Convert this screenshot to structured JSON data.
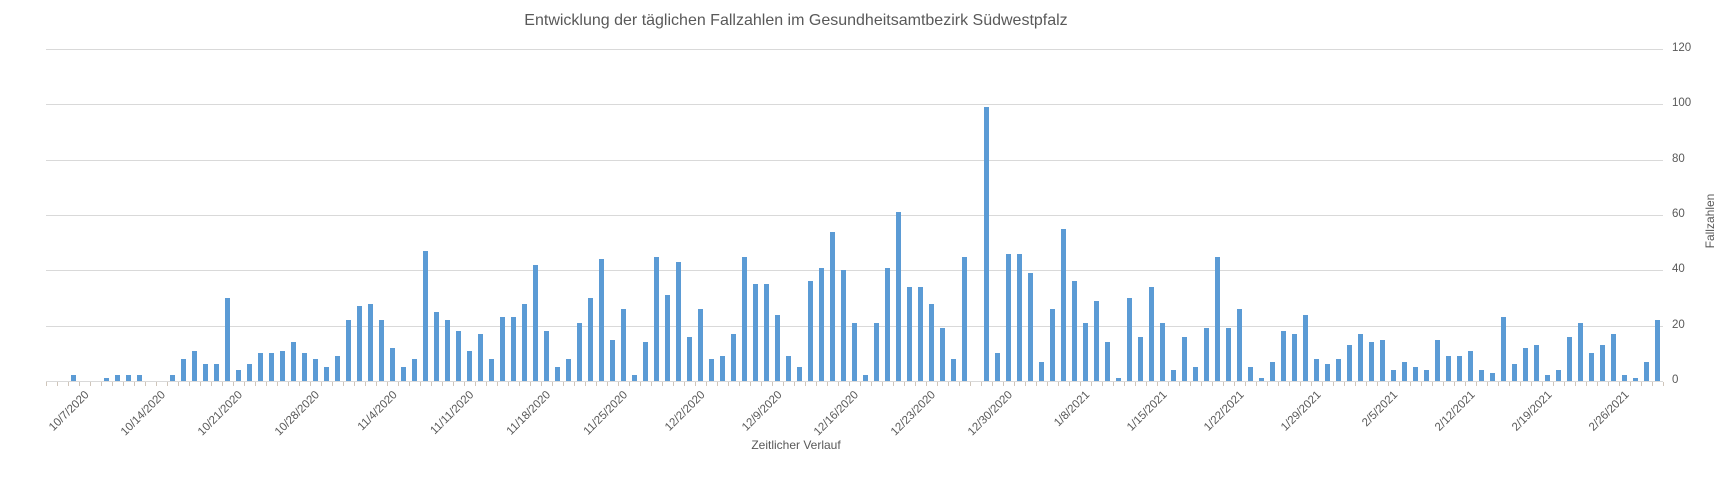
{
  "chart_data": {
    "type": "bar",
    "title": "Entwicklung der täglichen Fallzahlen im Gesundheitsamtbezirk Südwestpfalz",
    "xlabel": "Zeitlicher Verlauf",
    "ylabel": "Fallzahlen",
    "ylim": [
      0,
      120
    ],
    "yticks": [
      0,
      20,
      40,
      60,
      80,
      100,
      120
    ],
    "grid": true,
    "legend_position": "none",
    "y_axis_side": "right",
    "x_tick_labels": [
      "10/7/2020",
      "10/14/2020",
      "10/21/2020",
      "10/28/2020",
      "11/4/2020",
      "11/11/2020",
      "11/18/2020",
      "11/25/2020",
      "12/2/2020",
      "12/9/2020",
      "12/16/2020",
      "12/23/2020",
      "12/30/2020",
      "1/8/2021",
      "1/15/2021",
      "1/22/2021",
      "1/29/2021",
      "2/5/2021",
      "2/12/2021",
      "2/19/2021",
      "2/26/2021"
    ],
    "x_tick_first_slot": 3,
    "x_tick_interval": 7,
    "values": [
      0,
      0,
      2,
      0,
      0,
      1,
      2,
      2,
      2,
      0,
      0,
      2,
      8,
      11,
      6,
      6,
      30,
      4,
      6,
      10,
      10,
      11,
      14,
      10,
      8,
      5,
      9,
      22,
      27,
      28,
      22,
      12,
      5,
      8,
      47,
      25,
      22,
      18,
      11,
      17,
      8,
      23,
      23,
      28,
      42,
      18,
      5,
      8,
      21,
      30,
      44,
      15,
      26,
      2,
      14,
      45,
      31,
      43,
      16,
      26,
      8,
      9,
      17,
      45,
      35,
      35,
      24,
      9,
      5,
      36,
      41,
      54,
      40,
      21,
      2,
      21,
      41,
      61,
      34,
      34,
      28,
      19,
      8,
      45,
      0,
      99,
      10,
      46,
      46,
      39,
      7,
      26,
      55,
      36,
      21,
      29,
      14,
      1,
      30,
      16,
      34,
      21,
      4,
      16,
      5,
      19,
      45,
      19,
      26,
      5,
      1,
      7,
      18,
      17,
      24,
      8,
      6,
      8,
      13,
      17,
      14,
      15,
      4,
      7,
      5,
      4,
      15,
      9,
      9,
      11,
      4,
      3,
      23,
      6,
      12,
      13,
      2,
      4,
      16,
      21,
      10,
      13,
      17,
      2,
      1,
      7,
      22
    ]
  },
  "colors": {
    "bar": "#5b9bd5",
    "gridline": "#d9d9d9",
    "axis_text": "#595959",
    "tick_mark": "#cfc5ba",
    "background": "#ffffff"
  }
}
